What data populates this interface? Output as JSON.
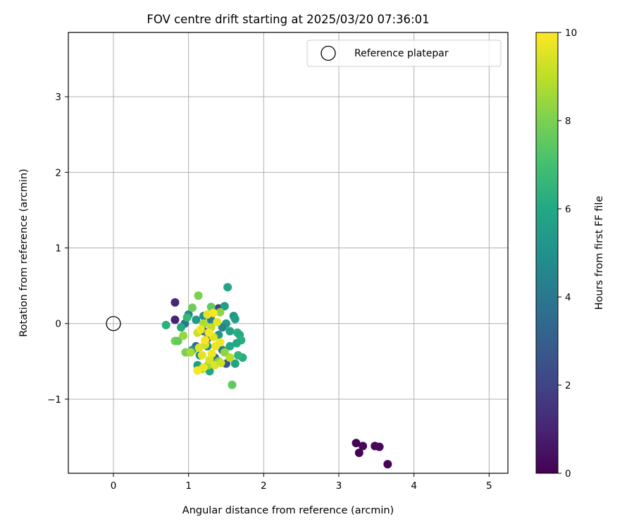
{
  "chart_data": {
    "type": "scatter",
    "title": "FOV centre drift starting at 2025/03/20 07:36:01",
    "xlabel": "Angular distance from reference (arcmin)",
    "ylabel": "Rotation from reference (arcmin)",
    "xlim": [
      -0.6,
      5.25
    ],
    "ylim": [
      -1.98,
      3.85
    ],
    "xticks": [
      0,
      1,
      2,
      3,
      4,
      5
    ],
    "xtick_labels": [
      "0",
      "1",
      "2",
      "3",
      "4",
      "5"
    ],
    "yticks": [
      -1,
      0,
      1,
      2,
      3
    ],
    "ytick_labels": [
      "−1",
      "0",
      "1",
      "2",
      "3"
    ],
    "grid": true,
    "legend": {
      "position": "upper right",
      "entries": [
        "Reference platepar"
      ]
    },
    "reference_point": {
      "label": "Reference platepar",
      "x": 0,
      "y": 0
    },
    "colorbar": {
      "label": "Hours from first FF file",
      "min": 0,
      "max": 10,
      "ticks": [
        0,
        2,
        4,
        6,
        8,
        10
      ],
      "tick_labels": [
        "0",
        "2",
        "4",
        "6",
        "8",
        "10"
      ],
      "colormap": "viridis"
    },
    "series": [
      {
        "columns": [
          "x",
          "y",
          "hours"
        ],
        "points": [
          [
            3.23,
            -1.58,
            0.1
          ],
          [
            3.27,
            -1.71,
            0.1
          ],
          [
            3.32,
            -1.62,
            0.2
          ],
          [
            3.48,
            -1.62,
            0.2
          ],
          [
            3.54,
            -1.63,
            0.2
          ],
          [
            3.65,
            -1.86,
            0.1
          ],
          [
            0.82,
            0.28,
            1.1
          ],
          [
            0.82,
            0.05,
            1.0
          ],
          [
            1.5,
            -0.53,
            2.5
          ],
          [
            1.4,
            0.2,
            1.8
          ],
          [
            0.95,
            0.0,
            3.9
          ],
          [
            1.0,
            0.12,
            4.6
          ],
          [
            1.2,
            -0.1,
            3.5
          ],
          [
            1.3,
            0.05,
            4.2
          ],
          [
            1.25,
            -0.2,
            3.0
          ],
          [
            1.1,
            -0.3,
            3.3
          ],
          [
            1.45,
            -0.35,
            4.0
          ],
          [
            1.35,
            -0.45,
            3.7
          ],
          [
            1.6,
            0.1,
            5.2
          ],
          [
            1.62,
            0.06,
            5.6
          ],
          [
            1.48,
            0.23,
            5.6
          ],
          [
            1.52,
            0.48,
            5.9
          ],
          [
            1.5,
            0.0,
            5.4
          ],
          [
            1.55,
            -0.1,
            5.8
          ],
          [
            1.65,
            -0.12,
            6.3
          ],
          [
            1.68,
            -0.15,
            6.1
          ],
          [
            1.7,
            -0.22,
            6.3
          ],
          [
            1.64,
            -0.26,
            6.0
          ],
          [
            1.72,
            -0.45,
            6.2
          ],
          [
            1.66,
            -0.42,
            6.5
          ],
          [
            1.62,
            -0.53,
            5.8
          ],
          [
            1.28,
            -0.63,
            5.9
          ],
          [
            1.12,
            -0.55,
            5.6
          ],
          [
            1.05,
            -0.35,
            5.0
          ],
          [
            1.1,
            0.05,
            5.4
          ],
          [
            1.2,
            0.1,
            5.0
          ],
          [
            0.7,
            -0.02,
            6.3
          ],
          [
            0.9,
            -0.05,
            6.1
          ],
          [
            0.98,
            0.08,
            6.6
          ],
          [
            1.25,
            -0.3,
            4.8
          ],
          [
            1.4,
            -0.15,
            5.3
          ],
          [
            1.55,
            -0.3,
            6.0
          ],
          [
            1.45,
            -0.05,
            4.5
          ],
          [
            1.15,
            -0.42,
            4.9
          ],
          [
            1.3,
            0.22,
            7.6
          ],
          [
            1.05,
            0.21,
            7.8
          ],
          [
            1.13,
            0.37,
            8.0
          ],
          [
            1.58,
            -0.81,
            7.5
          ],
          [
            0.82,
            -0.23,
            7.9
          ],
          [
            0.86,
            -0.23,
            7.6
          ],
          [
            0.93,
            -0.16,
            8.4
          ],
          [
            0.96,
            -0.38,
            8.0
          ],
          [
            1.03,
            -0.38,
            8.7
          ],
          [
            1.18,
            -0.6,
            8.4
          ],
          [
            1.26,
            -0.55,
            8.6
          ],
          [
            1.42,
            0.15,
            8.3
          ],
          [
            1.4,
            -0.5,
            8.1
          ],
          [
            1.48,
            -0.38,
            8.3
          ],
          [
            1.55,
            -0.45,
            8.9
          ],
          [
            1.2,
            0.0,
            8.8
          ],
          [
            1.3,
            -0.05,
            9.0
          ],
          [
            1.12,
            -0.12,
            9.2
          ],
          [
            1.22,
            -0.28,
            9.3
          ],
          [
            1.33,
            -0.18,
            9.5
          ],
          [
            1.36,
            -0.3,
            9.7
          ],
          [
            1.18,
            -0.42,
            9.6
          ],
          [
            1.28,
            -0.48,
            9.4
          ],
          [
            1.42,
            -0.25,
            9.8
          ],
          [
            1.25,
            0.12,
            9.6
          ],
          [
            1.33,
            0.14,
            9.9
          ],
          [
            1.16,
            -0.08,
            9.8
          ],
          [
            1.38,
            0.02,
            9.6
          ],
          [
            1.12,
            -0.62,
            9.9
          ],
          [
            1.2,
            -0.58,
            9.7
          ],
          [
            1.35,
            -0.55,
            9.5
          ],
          [
            1.43,
            -0.52,
            9.2
          ],
          [
            1.22,
            -0.22,
            9.9
          ],
          [
            1.31,
            -0.4,
            9.8
          ],
          [
            1.14,
            -0.32,
            9.5
          ],
          [
            1.27,
            -0.12,
            9.9
          ]
        ]
      }
    ]
  }
}
